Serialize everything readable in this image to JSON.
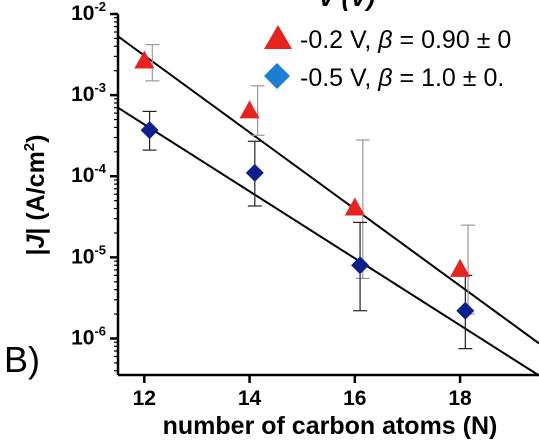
{
  "chart_data": {
    "type": "scatter",
    "yscale": "log",
    "xlabel": "number of carbon atoms (N)",
    "ylabel_parts": [
      "|",
      "J",
      "| (A/cm",
      "2",
      ")"
    ],
    "panel_label": "B)",
    "legend_title_partial": "V (V)",
    "xlim": [
      11.5,
      19.5
    ],
    "ylim_log10": [
      -6.45,
      -2
    ],
    "x_ticks": [
      12,
      14,
      16,
      18
    ],
    "y_ticks": [
      {
        "base": "10",
        "exp": "-2"
      },
      {
        "base": "10",
        "exp": "-3"
      },
      {
        "base": "10",
        "exp": "-4"
      },
      {
        "base": "10",
        "exp": "-5"
      },
      {
        "base": "10",
        "exp": "-6"
      }
    ],
    "series": [
      {
        "legend_parts": [
          "-0.2 V, ",
          "β",
          " = 0.90 ± 0"
        ],
        "color": "#e8231e",
        "marker": "triangle",
        "x": [
          12.0,
          14.0,
          16.0,
          18.0
        ],
        "y": [
          0.0026,
          0.00063,
          4e-05,
          7e-06
        ],
        "err_low": [
          0.0015,
          0.00032,
          5.5e-06,
          2e-06
        ],
        "err_high": [
          0.0042,
          0.0013,
          0.00028,
          2.5e-05
        ],
        "fit": {
          "x": [
            11.5,
            19.5
          ],
          "y": [
            0.0053,
            8.7e-07
          ]
        }
      },
      {
        "legend_parts": [
          "-0.5 V, ",
          "β",
          " = 1.0 ± 0."
        ],
        "color": "#0d1f8c",
        "legend_color": "#1a7fd4",
        "marker": "diamond",
        "x": [
          12.1,
          14.1,
          16.1,
          18.1
        ],
        "y": [
          0.00037,
          0.00011,
          8e-06,
          2.2e-06
        ],
        "err_low": [
          0.00021,
          4.3e-05,
          2.2e-06,
          7.5e-07
        ],
        "err_high": [
          0.00063,
          0.00027,
          2.7e-05,
          6e-06
        ],
        "fit": {
          "x": [
            11.5,
            19.5
          ],
          "y": [
            0.0007,
            3.5e-07
          ]
        }
      }
    ]
  }
}
